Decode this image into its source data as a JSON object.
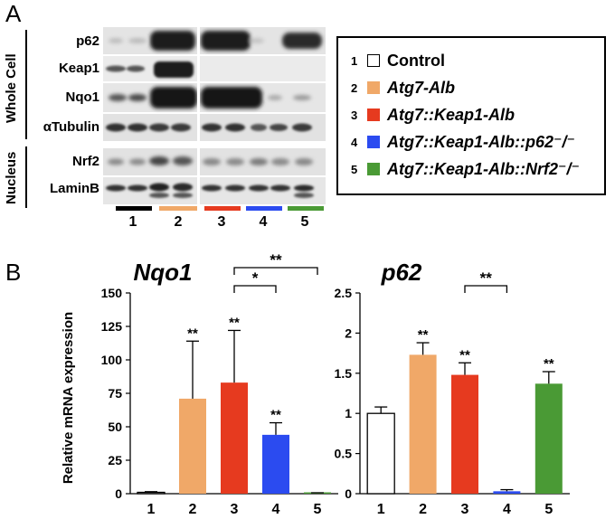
{
  "panel_a": {
    "letter": "A",
    "group_labels": {
      "whole_cell": "Whole Cell",
      "nucleus": "Nucleus"
    },
    "rows": [
      "p62",
      "Keap1",
      "Nqo1",
      "αTubulin",
      "Nrf2",
      "LaminB"
    ],
    "lanes": [
      "1",
      "2",
      "3",
      "4",
      "5"
    ],
    "lane_colors": [
      "#000000",
      "#f0a868",
      "#e63a1f",
      "#2b4bf0",
      "#4a9a35"
    ]
  },
  "legend": {
    "items": [
      {
        "num": "1",
        "label": "Control",
        "color": "#ffffff",
        "italic": false
      },
      {
        "num": "2",
        "label": "Atg7-Alb",
        "color": "#f0a868",
        "italic": true
      },
      {
        "num": "3",
        "label": "Atg7::Keap1-Alb",
        "color": "#e63a1f",
        "italic": true
      },
      {
        "num": "4",
        "label": "Atg7::Keap1-Alb::p62⁻/⁻",
        "color": "#2b4bf0",
        "italic": true
      },
      {
        "num": "5",
        "label": "Atg7::Keap1-Alb::Nrf2⁻/⁻",
        "color": "#4a9a35",
        "italic": true
      }
    ]
  },
  "panel_b": {
    "letter": "B",
    "ylabel": "Relative mRNA expression"
  },
  "chart_data": [
    {
      "type": "bar",
      "title": "Nqo1",
      "categories": [
        "1",
        "2",
        "3",
        "4",
        "5"
      ],
      "values": [
        1,
        71,
        83,
        44,
        0.5
      ],
      "errors": [
        0.5,
        43,
        39,
        9,
        0.2
      ],
      "colors": [
        "#ffffff",
        "#f0a868",
        "#e63a1f",
        "#2b4bf0",
        "#4a9a35"
      ],
      "significance": [
        "",
        "**",
        "**",
        "**",
        ""
      ],
      "brackets": [
        {
          "from": 3,
          "to": 4,
          "label": "*"
        },
        {
          "from": 3,
          "to": 5,
          "label": "**"
        }
      ],
      "ylim": [
        0,
        150
      ],
      "yticks": [
        0,
        25,
        50,
        75,
        100,
        125,
        150
      ],
      "ylabel": "Relative mRNA expression",
      "xlabel": ""
    },
    {
      "type": "bar",
      "title": "p62",
      "categories": [
        "1",
        "2",
        "3",
        "4",
        "5"
      ],
      "values": [
        1.0,
        1.73,
        1.48,
        0.03,
        1.37
      ],
      "errors": [
        0.08,
        0.15,
        0.15,
        0.02,
        0.15
      ],
      "colors": [
        "#ffffff",
        "#f0a868",
        "#e63a1f",
        "#2b4bf0",
        "#4a9a35"
      ],
      "significance": [
        "",
        "**",
        "**",
        "",
        "**"
      ],
      "brackets": [
        {
          "from": 3,
          "to": 4,
          "label": "**"
        }
      ],
      "ylim": [
        0,
        2.5
      ],
      "yticks": [
        "0",
        "0.5",
        "1",
        "1.5",
        "2",
        "2.5"
      ],
      "ylabel": "",
      "xlabel": ""
    }
  ]
}
